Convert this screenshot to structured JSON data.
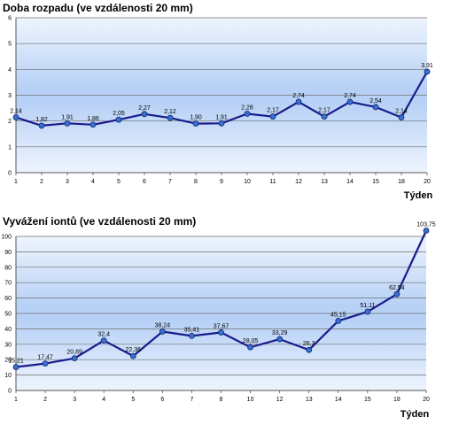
{
  "chart_data": [
    {
      "type": "line",
      "title": "Doba rozpadu (ve vzdálenosti 20 mm)",
      "xlabel": "Týden",
      "ylabel": "",
      "ylim": [
        0,
        6
      ],
      "yticks": [
        "0",
        "1",
        "2",
        "3",
        "4",
        "5",
        "6"
      ],
      "x": [
        "1",
        "2",
        "3",
        "4",
        "5",
        "6",
        "7",
        "8",
        "9",
        "10",
        "11",
        "12",
        "13",
        "14",
        "15",
        "18",
        "20"
      ],
      "series": [
        {
          "values": [
            2.14,
            1.82,
            1.91,
            1.86,
            2.05,
            2.27,
            2.12,
            1.9,
            1.91,
            2.28,
            2.17,
            2.74,
            2.17,
            2.74,
            2.54,
            2.14,
            3.91
          ],
          "labels": [
            "2,14",
            "1,82",
            "1,91",
            "1,86",
            "2,05",
            "2,27",
            "2,12",
            "1,90",
            "1,91",
            "2,28",
            "2,17",
            "2,74",
            "2,17",
            "2,74",
            "2,54",
            "2,14",
            "3,91"
          ]
        }
      ],
      "line_color": "#1a1a8c",
      "grid": true
    },
    {
      "type": "line",
      "title": "Vyvážení iontů (ve vzdálenosti 20 mm)",
      "xlabel": "Týden",
      "ylabel": "",
      "ylim": [
        0,
        100
      ],
      "yticks": [
        "0",
        "10",
        "20",
        "30",
        "40",
        "50",
        "60",
        "70",
        "80",
        "90",
        "100"
      ],
      "x": [
        "1",
        "2",
        "3",
        "4",
        "5",
        "6",
        "7",
        "8",
        "10",
        "12",
        "13",
        "14",
        "15",
        "18",
        "20"
      ],
      "series": [
        {
          "values": [
            15.21,
            17.47,
            20.89,
            32.4,
            22.36,
            38.24,
            35.41,
            37.67,
            28.05,
            33.29,
            26.3,
            45.15,
            51.11,
            62.54,
            103.75
          ],
          "labels": [
            "15,21",
            "17,47",
            "20,89",
            "32,4",
            "22,36",
            "38,24",
            "35,41",
            "37,67",
            "28,05",
            "33,29",
            "26,3",
            "45,15",
            "51,11",
            "62,54",
            "103,75"
          ]
        }
      ],
      "line_color": "#1a1a8c",
      "grid": true
    }
  ]
}
